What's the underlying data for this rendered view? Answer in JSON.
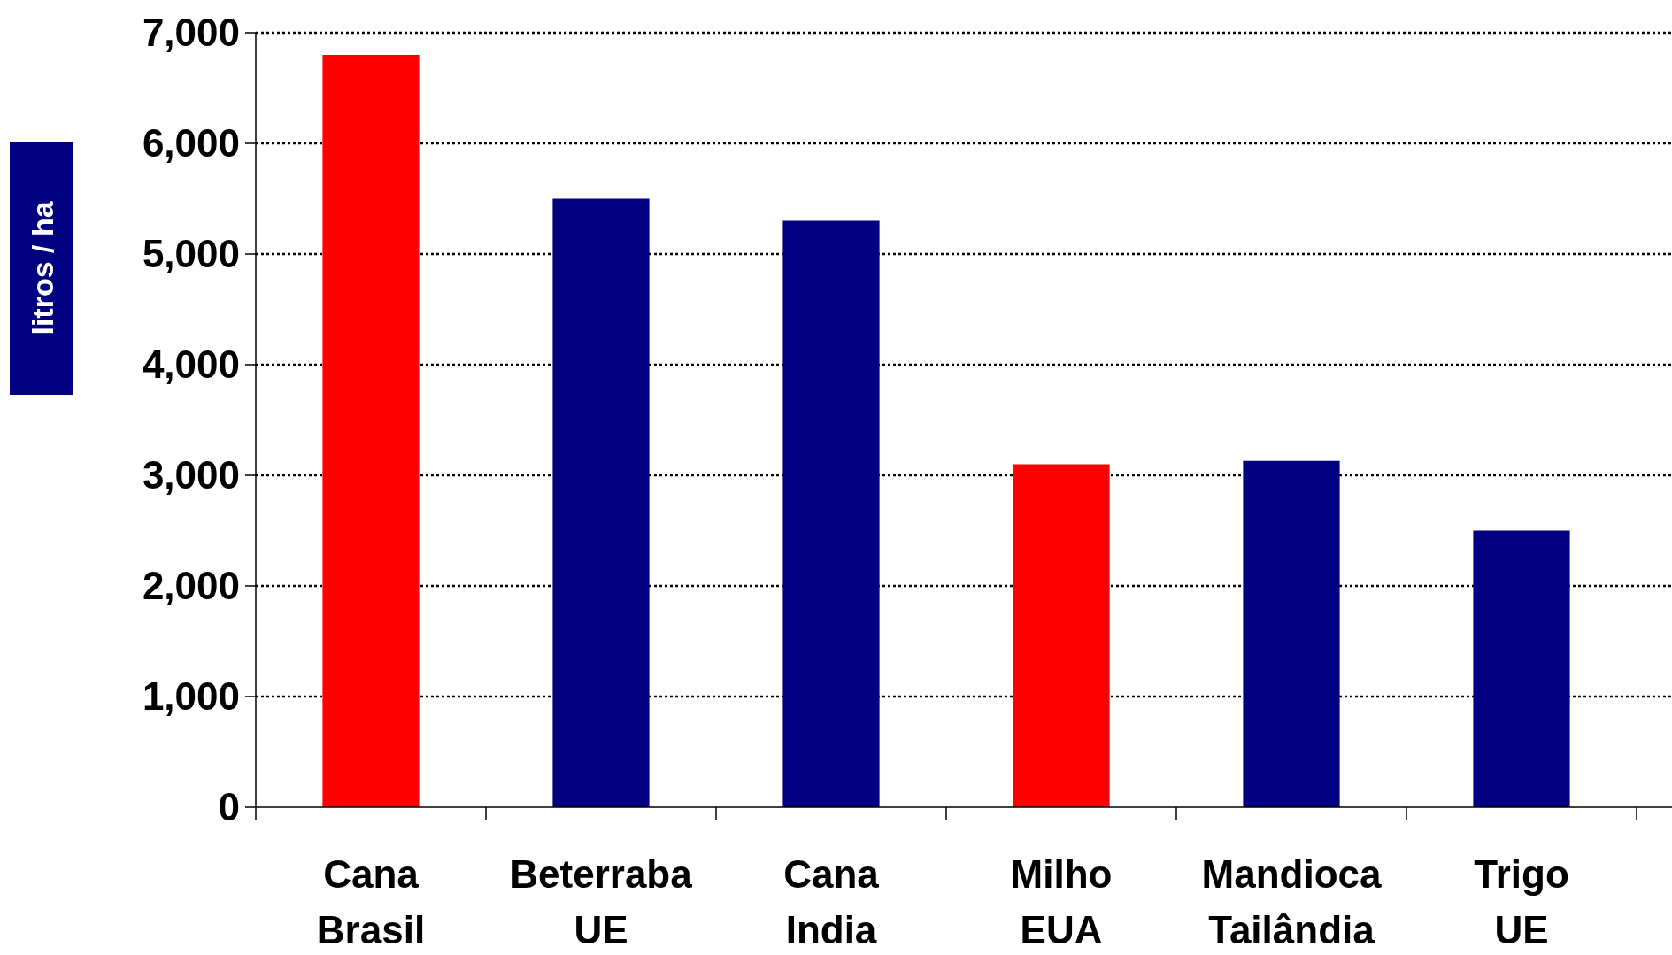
{
  "chart_data": {
    "type": "bar",
    "ylabel": "litros / ha",
    "categories": [
      "Cana Brasil",
      "Beterraba UE",
      "Cana India",
      "Milho EUA",
      "Mandioca Tailândia",
      "Trigo UE"
    ],
    "values": [
      6800,
      5500,
      5300,
      3100,
      3130,
      2500
    ],
    "colors": [
      "#ff0000",
      "#000080",
      "#000080",
      "#ff0000",
      "#000080",
      "#000080"
    ],
    "ylim": [
      0,
      7000
    ],
    "yticks": [
      {
        "value": 0,
        "label": "0"
      },
      {
        "value": 1000,
        "label": "1,000"
      },
      {
        "value": 2000,
        "label": "2,000"
      },
      {
        "value": 3000,
        "label": "3,000"
      },
      {
        "value": 4000,
        "label": "4,000"
      },
      {
        "value": 5000,
        "label": "5,000"
      },
      {
        "value": 6000,
        "label": "6,000"
      },
      {
        "value": 7000,
        "label": "7,000"
      }
    ],
    "grid": "y"
  }
}
